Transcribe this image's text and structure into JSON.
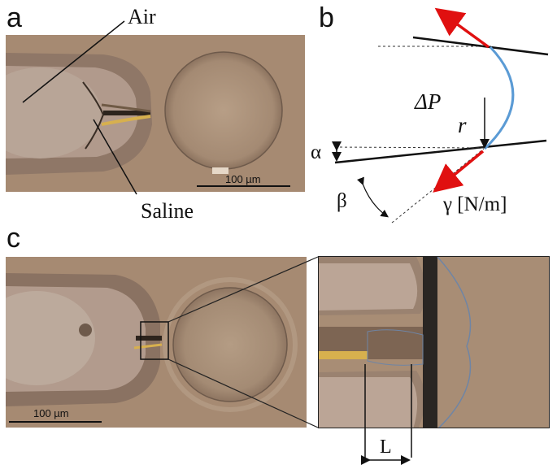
{
  "panels": {
    "a": {
      "label": "a",
      "callouts": {
        "air": "Air",
        "saline": "Saline"
      },
      "scale_bar": "100 µm"
    },
    "b": {
      "label": "b",
      "symbols": {
        "delta_p": "ΔP",
        "r": "r",
        "alpha": "α",
        "beta": "β",
        "gamma": "γ [N/m]"
      }
    },
    "c": {
      "label": "c",
      "scale_bar": "100 µm",
      "length_label": "L"
    }
  },
  "colors": {
    "micrograph": "#a68a72",
    "meniscus": "#5b9bd5",
    "tension_arrow": "#e01010"
  }
}
